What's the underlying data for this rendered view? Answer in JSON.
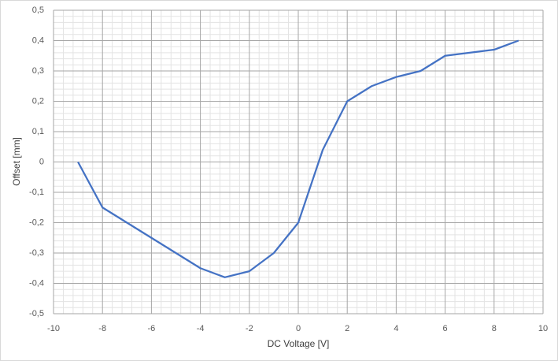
{
  "chart_data": {
    "type": "line",
    "x_label": "DC Voltage [V]",
    "y_label": "Offset [mm]",
    "x": [
      -9,
      -8,
      -7,
      -6,
      -5,
      -4,
      -3,
      -2,
      -1,
      0,
      1,
      2,
      3,
      4,
      5,
      6,
      7,
      8,
      9
    ],
    "series": [
      {
        "color": "#4472c4",
        "values": [
          0,
          -0.15,
          -0.2,
          -0.25,
          -0.3,
          -0.35,
          -0.38,
          -0.36,
          -0.3,
          -0.2,
          0.04,
          0.2,
          0.25,
          0.28,
          0.3,
          0.35,
          0.36,
          0.37,
          0.4
        ]
      }
    ],
    "xlim": [
      -10,
      10
    ],
    "xticks": [
      -10,
      -8,
      -6,
      -4,
      -2,
      0,
      2,
      4,
      6,
      8,
      10
    ],
    "ylim": [
      -0.5,
      0.5
    ],
    "yticks": [
      {
        "value": -0.5,
        "label": "-0,5"
      },
      {
        "value": -0.4,
        "label": "-0,4"
      },
      {
        "value": -0.3,
        "label": "-0,3"
      },
      {
        "value": -0.2,
        "label": "-0,2"
      },
      {
        "value": -0.1,
        "label": "-0,1"
      },
      0,
      {
        "value": 0.1,
        "label": "0,1"
      },
      {
        "value": 0.2,
        "label": "0,2"
      },
      {
        "value": 0.3,
        "label": "0,3"
      },
      {
        "value": 0.4,
        "label": "0,4"
      },
      {
        "value": 0.5,
        "label": "0,5"
      }
    ],
    "grid": true,
    "minor_grid": true
  }
}
